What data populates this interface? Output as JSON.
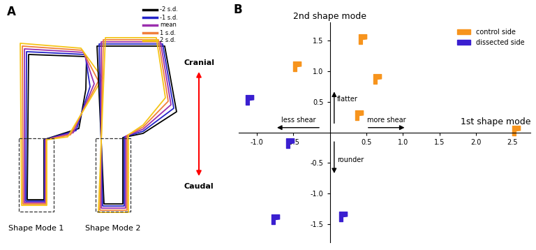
{
  "chart_data": [
    {
      "type": "shape_modes",
      "panel": "A",
      "series": [
        {
          "name": "-2 s.d.",
          "color": "#000000"
        },
        {
          "name": "-1 s.d.",
          "color": "#2424c8"
        },
        {
          "name": "mean",
          "color": "#9b2fae"
        },
        {
          "name": "1 s.d.",
          "color": "#f07f3c"
        },
        {
          "name": "2 s.d.",
          "color": "#f5c518"
        }
      ],
      "categories": [
        "Shape Mode 1",
        "Shape Mode 2"
      ],
      "annotations": [
        "Cranial",
        "Caudal"
      ]
    },
    {
      "type": "scatter",
      "panel": "B",
      "xlabel": "1st shape mode",
      "ylabel": "2nd shape mode",
      "xlim": [
        -1.25,
        2.75
      ],
      "ylim": [
        -1.8,
        1.8
      ],
      "xticks": [
        -1.0,
        -0.5,
        0.5,
        1.0,
        1.5,
        2.0,
        2.5
      ],
      "yticks": [
        -1.5,
        -1.0,
        -0.5,
        0.5,
        1.0,
        1.5
      ],
      "marker": "shape",
      "legend": "upper right",
      "annotations": [
        "more shear",
        "less shear",
        "flatter",
        "rounder"
      ],
      "series": [
        {
          "name": "control side",
          "color": "#f7941d",
          "x": [
            0.4,
            -0.5,
            0.6,
            0.35,
            2.5
          ],
          "values": [
            1.45,
            1.0,
            0.8,
            0.2,
            -0.05
          ]
        },
        {
          "name": "dissected side",
          "color": "#3a1fd0",
          "x": [
            -1.15,
            -0.6,
            -0.8,
            0.13
          ],
          "values": [
            0.45,
            -0.25,
            -1.5,
            -1.45
          ]
        }
      ]
    }
  ]
}
